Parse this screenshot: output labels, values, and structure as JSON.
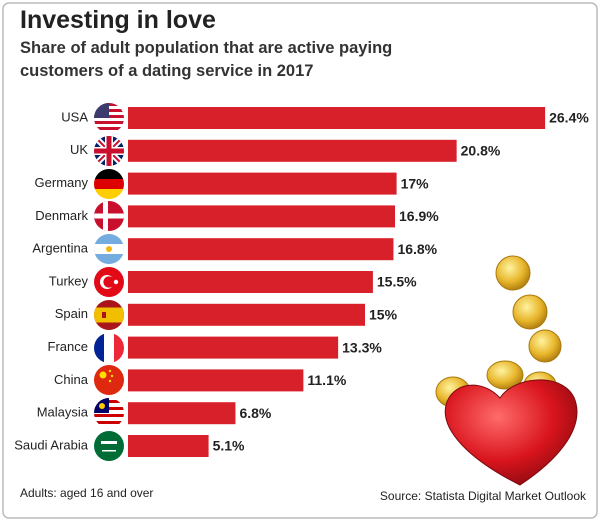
{
  "chart_data": {
    "type": "bar",
    "orientation": "horizontal",
    "title": "Investing in love",
    "subtitle": "Share of adult population that are active paying customers of a dating service in 2017",
    "categories": [
      "USA",
      "UK",
      "Germany",
      "Denmark",
      "Argentina",
      "Turkey",
      "Spain",
      "France",
      "China",
      "Malaysia",
      "Saudi Arabia"
    ],
    "values": [
      26.4,
      20.8,
      17,
      16.9,
      16.8,
      15.5,
      15,
      13.3,
      11.1,
      6.8,
      5.1
    ],
    "value_labels": [
      "26.4%",
      "20.8%",
      "17%",
      "16.9%",
      "16.8%",
      "15.5%",
      "15%",
      "13.3%",
      "11.1%",
      "6.8%",
      "5.1%"
    ],
    "color": "#d8202a",
    "note": "Adults: aged 16 and over",
    "source": "Source: Statista Digital Market Outlook"
  }
}
